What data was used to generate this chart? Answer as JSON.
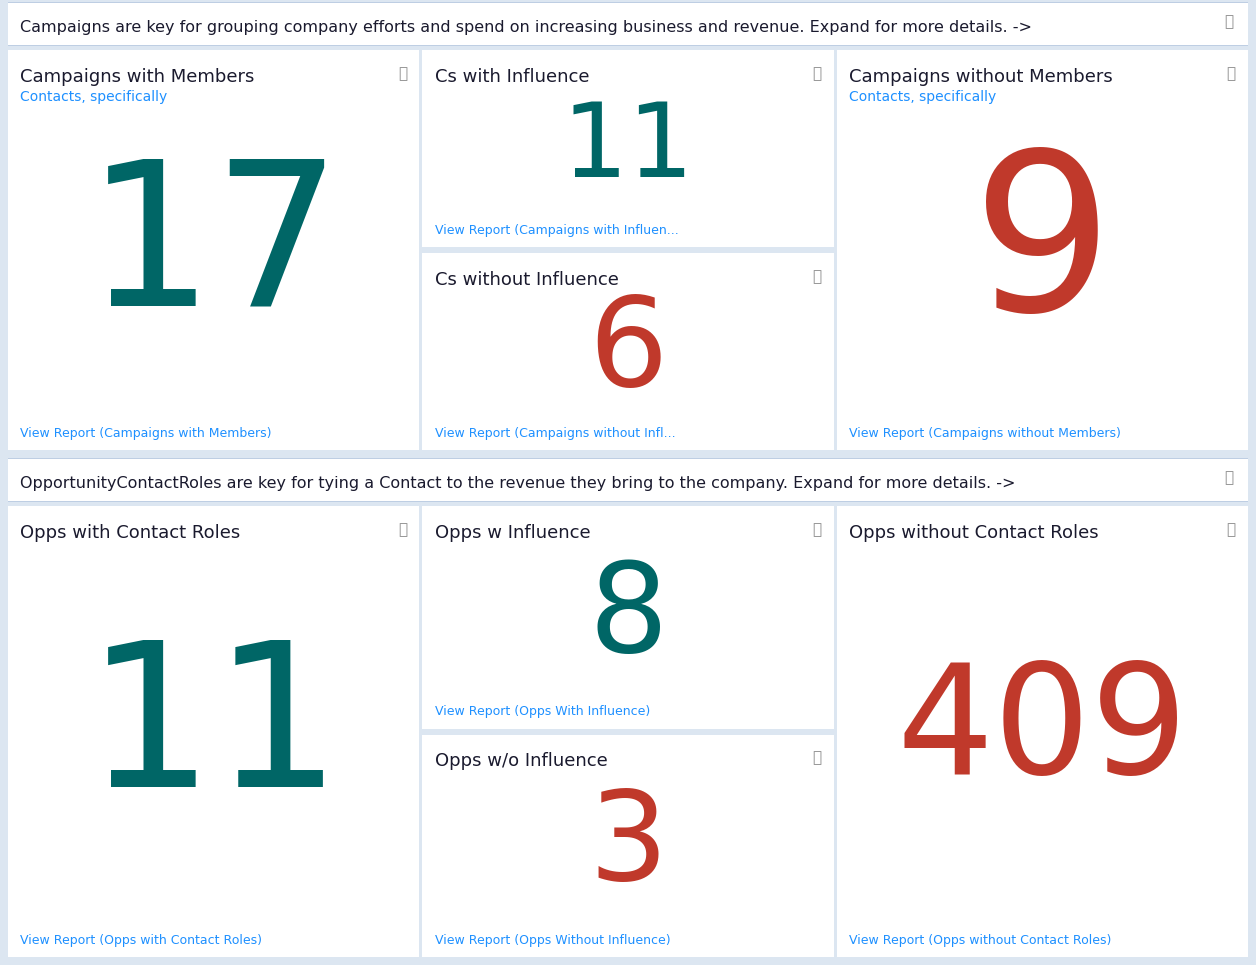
{
  "bg_color": "#dce6f1",
  "card_bg": "#ffffff",
  "border_color": "#b0c4de",
  "section1_header": "Campaigns are key for grouping company efforts and spend on increasing business and revenue. Expand for more details. ->",
  "section2_header": "OpportunityContactRoles are key for tying a Contact to the revenue they bring to the company. Expand for more details. ->",
  "title_color": "#1a1a2e",
  "subtitle_color": "#1e90ff",
  "link_color": "#1e90ff",
  "expand_icon_color": "#888888",
  "header_fontsize": 11.5,
  "title_fontsize": 13,
  "subtitle_fontsize": 10,
  "link_fontsize": 9,
  "card_configs": [
    {
      "row": 0,
      "col": 0,
      "type": "full",
      "title": "Campaigns with Members",
      "subtitle": "Contacts, specifically",
      "value": "17",
      "value_color": "#006666",
      "link": "View Report (Campaigns with Members)"
    },
    {
      "row": 0,
      "col": 1,
      "type": "top",
      "title": "Cs with Influence",
      "subtitle": "",
      "value": "11",
      "value_color": "#006666",
      "link": "View Report (Campaigns with Influen..."
    },
    {
      "row": 0,
      "col": 1,
      "type": "bottom",
      "title": "Cs without Influence",
      "subtitle": "",
      "value": "6",
      "value_color": "#c0392b",
      "link": "View Report (Campaigns without Infl..."
    },
    {
      "row": 0,
      "col": 2,
      "type": "full",
      "title": "Campaigns without Members",
      "subtitle": "Contacts, specifically",
      "value": "9",
      "value_color": "#c0392b",
      "link": "View Report (Campaigns without Members)"
    },
    {
      "row": 1,
      "col": 0,
      "type": "full",
      "title": "Opps with Contact Roles",
      "subtitle": "",
      "value": "11",
      "value_color": "#006666",
      "link": "View Report (Opps with Contact Roles)"
    },
    {
      "row": 1,
      "col": 1,
      "type": "top",
      "title": "Opps w Influence",
      "subtitle": "",
      "value": "8",
      "value_color": "#006666",
      "link": "View Report (Opps With Influence)"
    },
    {
      "row": 1,
      "col": 1,
      "type": "bottom",
      "title": "Opps w/o Influence",
      "subtitle": "",
      "value": "3",
      "value_color": "#c0392b",
      "link": "View Report (Opps Without Influence)"
    },
    {
      "row": 1,
      "col": 2,
      "type": "full",
      "title": "Opps without Contact Roles",
      "subtitle": "",
      "value": "409",
      "value_color": "#c0392b",
      "link": "View Report (Opps without Contact Roles)"
    }
  ]
}
